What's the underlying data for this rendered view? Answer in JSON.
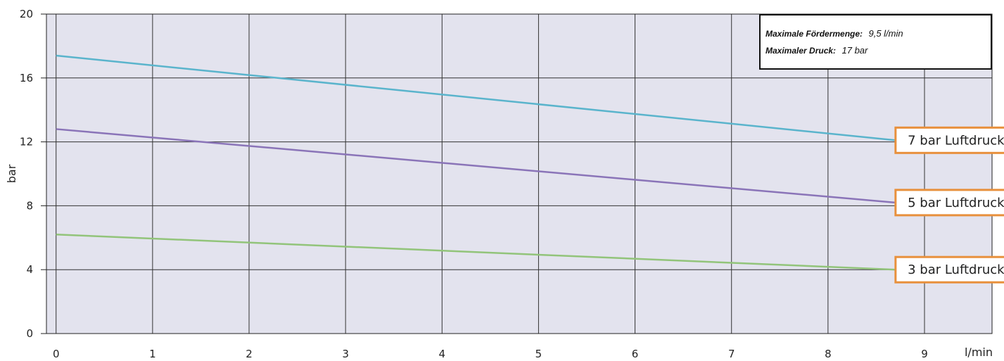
{
  "chart_data": {
    "type": "line",
    "xlabel": "l/min",
    "ylabel": "bar",
    "xlim": [
      -0.1,
      9.7
    ],
    "ylim": [
      0,
      20
    ],
    "x_ticks": [
      "0",
      "1",
      "2",
      "3",
      "4",
      "5",
      "6",
      "7",
      "8",
      "9"
    ],
    "y_ticks": [
      "0",
      "4",
      "8",
      "12",
      "16",
      "20"
    ],
    "grid": true,
    "series": [
      {
        "name": "7 bar Luftdruck",
        "color": "#5ab4cc",
        "x": [
          0,
          8.7
        ],
        "y": [
          17.4,
          12.1
        ]
      },
      {
        "name": "5 bar Luftdruck",
        "color": "#8a74b8",
        "x": [
          0,
          8.7
        ],
        "y": [
          12.8,
          8.2
        ]
      },
      {
        "name": "3 bar Luftdruck",
        "color": "#92c47a",
        "x": [
          0,
          8.7
        ],
        "y": [
          6.2,
          4.0
        ]
      }
    ],
    "plot_background": "#e3e3ee",
    "label_border_color": "#e8903c"
  },
  "info_box": {
    "line1_label": "Maximale Fördermenge:",
    "line1_value": "9,5 l/min",
    "line2_label": "Maximaler Druck:",
    "line2_value": "17 bar"
  }
}
